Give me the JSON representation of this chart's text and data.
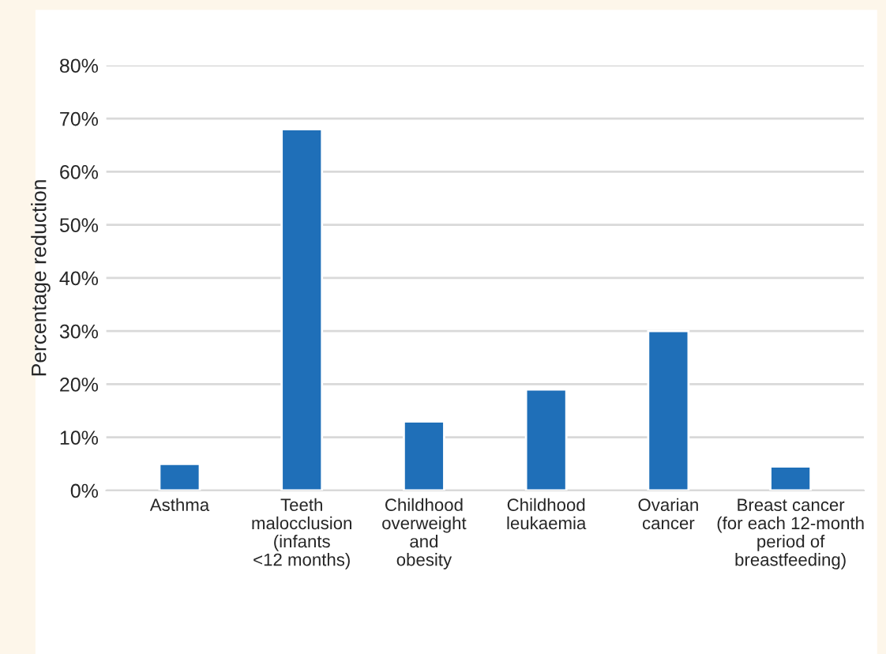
{
  "chart_data": {
    "type": "bar",
    "ylabel": "Percentage reduction",
    "categories": [
      "Asthma",
      "Teeth\nmalocclusion\n(infants\n<12 months)",
      "Childhood\noverweight\nand\nobesity",
      "Childhood\nleukaemia",
      "Ovarian\ncancer",
      "Breast cancer\n(for each 12-month\nperiod of\nbreastfeeding)"
    ],
    "values": [
      5,
      68,
      13,
      19,
      30,
      4.5
    ],
    "color": "#1f6fb8",
    "ylim": [
      0,
      80
    ],
    "yticks": [
      {
        "value": 0,
        "label": "0%"
      },
      {
        "value": 10,
        "label": "10%"
      },
      {
        "value": 20,
        "label": "20%"
      },
      {
        "value": 30,
        "label": "30%"
      },
      {
        "value": 40,
        "label": "40%"
      },
      {
        "value": 50,
        "label": "50%"
      },
      {
        "value": 60,
        "label": "60%"
      },
      {
        "value": 70,
        "label": "70%"
      },
      {
        "value": 80,
        "label": "80%"
      }
    ],
    "grid": "y"
  }
}
